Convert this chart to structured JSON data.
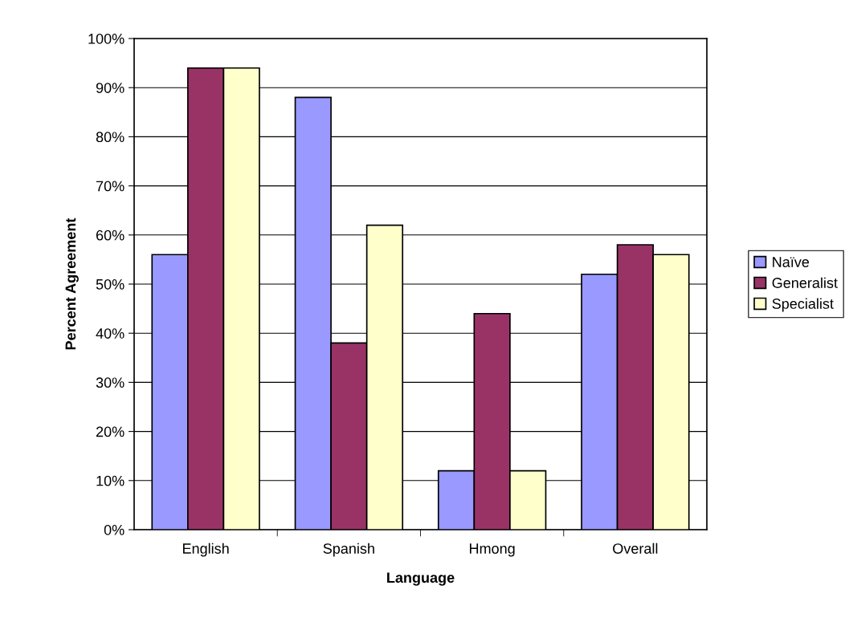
{
  "chart_data": {
    "type": "bar",
    "xlabel": "Language",
    "ylabel": "Percent Agreement",
    "categories": [
      "English",
      "Spanish",
      "Hmong",
      "Overall"
    ],
    "series": [
      {
        "name": "Naïve",
        "color": "#9999ff",
        "values": [
          56,
          88,
          12,
          52
        ]
      },
      {
        "name": "Generalist",
        "color": "#993366",
        "values": [
          94,
          38,
          44,
          58
        ]
      },
      {
        "name": "Specialist",
        "color": "#ffffcc",
        "values": [
          94,
          62,
          12,
          56
        ]
      }
    ],
    "ylim": [
      0,
      100
    ],
    "yticks": [
      {
        "value": 0,
        "label": "0%"
      },
      {
        "value": 10,
        "label": "10%"
      },
      {
        "value": 20,
        "label": "20%"
      },
      {
        "value": 30,
        "label": "30%"
      },
      {
        "value": 40,
        "label": "40%"
      },
      {
        "value": 50,
        "label": "50%"
      },
      {
        "value": 60,
        "label": "60%"
      },
      {
        "value": 70,
        "label": "70%"
      },
      {
        "value": 80,
        "label": "80%"
      },
      {
        "value": 90,
        "label": "90%"
      },
      {
        "value": 100,
        "label": "100%"
      }
    ],
    "grid": "y",
    "legend": "right"
  }
}
